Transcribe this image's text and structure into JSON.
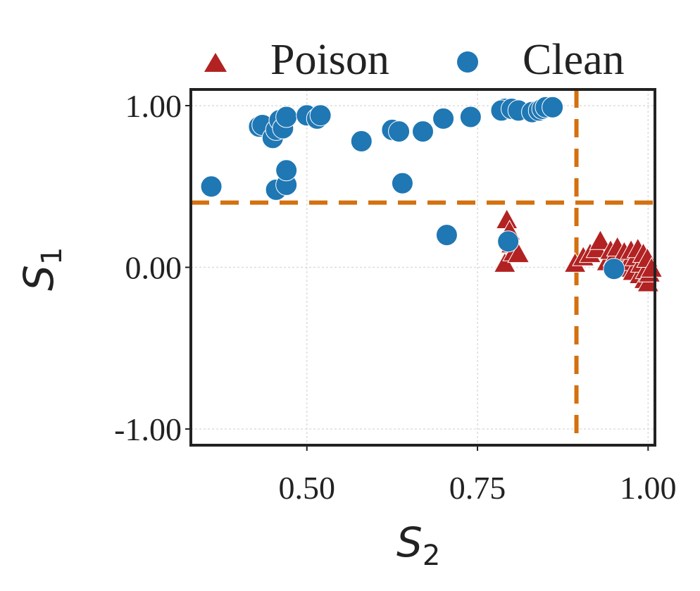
{
  "chart_data": {
    "type": "scatter",
    "title": "",
    "xlabel": {
      "base": "S",
      "sub": "2"
    },
    "ylabel": {
      "base": "S",
      "sub": "1"
    },
    "xlim": [
      0.33,
      1.01
    ],
    "ylim": [
      -1.1,
      1.1
    ],
    "xticks": [
      {
        "value": 0.5,
        "label": "0.50"
      },
      {
        "value": 0.75,
        "label": "0.75"
      },
      {
        "value": 1.0,
        "label": "1.00"
      }
    ],
    "yticks": [
      {
        "value": 1.0,
        "label": "1.00"
      },
      {
        "value": 0.0,
        "label": "0.00"
      },
      {
        "value": -1.0,
        "label": "-1.00"
      }
    ],
    "grid": true,
    "legend_position": "top",
    "thresholds": {
      "x": 0.895,
      "y": 0.4,
      "color": "#D4700E"
    },
    "series": [
      {
        "name": "Poison",
        "marker": "triangle",
        "color": "#B22222",
        "points": [
          [
            0.79,
            0.02
          ],
          [
            0.793,
            0.29
          ],
          [
            0.797,
            0.22
          ],
          [
            0.8,
            0.14
          ],
          [
            0.803,
            0.09
          ],
          [
            0.81,
            0.08
          ],
          [
            0.893,
            0.02
          ],
          [
            0.905,
            0.06
          ],
          [
            0.915,
            0.08
          ],
          [
            0.925,
            0.11
          ],
          [
            0.93,
            0.16
          ],
          [
            0.94,
            0.03
          ],
          [
            0.945,
            0.1
          ],
          [
            0.95,
            0.06
          ],
          [
            0.955,
            0.12
          ],
          [
            0.96,
            0.04
          ],
          [
            0.965,
            0.09
          ],
          [
            0.968,
            -0.01
          ],
          [
            0.972,
            0.03
          ],
          [
            0.975,
            0.1
          ],
          [
            0.978,
            -0.03
          ],
          [
            0.982,
            0.06
          ],
          [
            0.985,
            0.11
          ],
          [
            0.988,
            -0.05
          ],
          [
            0.99,
            0.02
          ],
          [
            0.993,
            0.08
          ],
          [
            0.995,
            -0.08
          ],
          [
            0.997,
            -0.02
          ],
          [
            0.999,
            0.05
          ],
          [
            1.0,
            -0.1
          ],
          [
            1.002,
            -0.04
          ],
          [
            1.005,
            -0.01
          ]
        ]
      },
      {
        "name": "Clean",
        "marker": "circle",
        "color": "#1F77B4",
        "points": [
          [
            0.36,
            0.5
          ],
          [
            0.43,
            0.87
          ],
          [
            0.435,
            0.88
          ],
          [
            0.45,
            0.8
          ],
          [
            0.455,
            0.85
          ],
          [
            0.46,
            0.91
          ],
          [
            0.465,
            0.86
          ],
          [
            0.47,
            0.93
          ],
          [
            0.455,
            0.48
          ],
          [
            0.47,
            0.51
          ],
          [
            0.47,
            0.6
          ],
          [
            0.5,
            0.94
          ],
          [
            0.515,
            0.92
          ],
          [
            0.52,
            0.94
          ],
          [
            0.58,
            0.78
          ],
          [
            0.625,
            0.85
          ],
          [
            0.635,
            0.84
          ],
          [
            0.64,
            0.52
          ],
          [
            0.67,
            0.84
          ],
          [
            0.7,
            0.92
          ],
          [
            0.705,
            0.2
          ],
          [
            0.74,
            0.93
          ],
          [
            0.79,
            0.98
          ],
          [
            0.785,
            0.97
          ],
          [
            0.795,
            0.16
          ],
          [
            0.8,
            0.98
          ],
          [
            0.81,
            0.97
          ],
          [
            0.83,
            0.96
          ],
          [
            0.84,
            0.97
          ],
          [
            0.845,
            0.98
          ],
          [
            0.85,
            0.99
          ],
          [
            0.86,
            0.99
          ],
          [
            0.95,
            -0.01
          ]
        ]
      }
    ]
  }
}
